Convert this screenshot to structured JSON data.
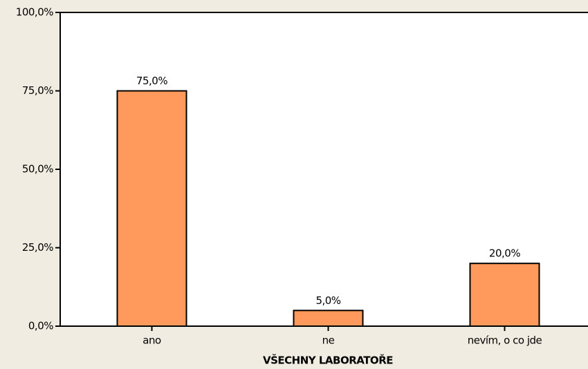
{
  "chart_data": {
    "type": "bar",
    "x_label": "VŠECHNY LABORATOŘE",
    "categories": [
      "ano",
      "ne",
      "nevím, o co jde"
    ],
    "values": [
      75,
      5,
      20
    ],
    "value_labels": [
      "75,0%",
      "5,0%",
      "20,0%"
    ],
    "color": "#ff9a5c",
    "ylim": [
      0,
      100
    ],
    "yticks": [
      {
        "value": 0,
        "label": "0,0%"
      },
      {
        "value": 25,
        "label": "25,0%"
      },
      {
        "value": 50,
        "label": "50,0%"
      },
      {
        "value": 75,
        "label": "75,0%"
      },
      {
        "value": 100,
        "label": "100,0%"
      }
    ],
    "grid": false
  }
}
